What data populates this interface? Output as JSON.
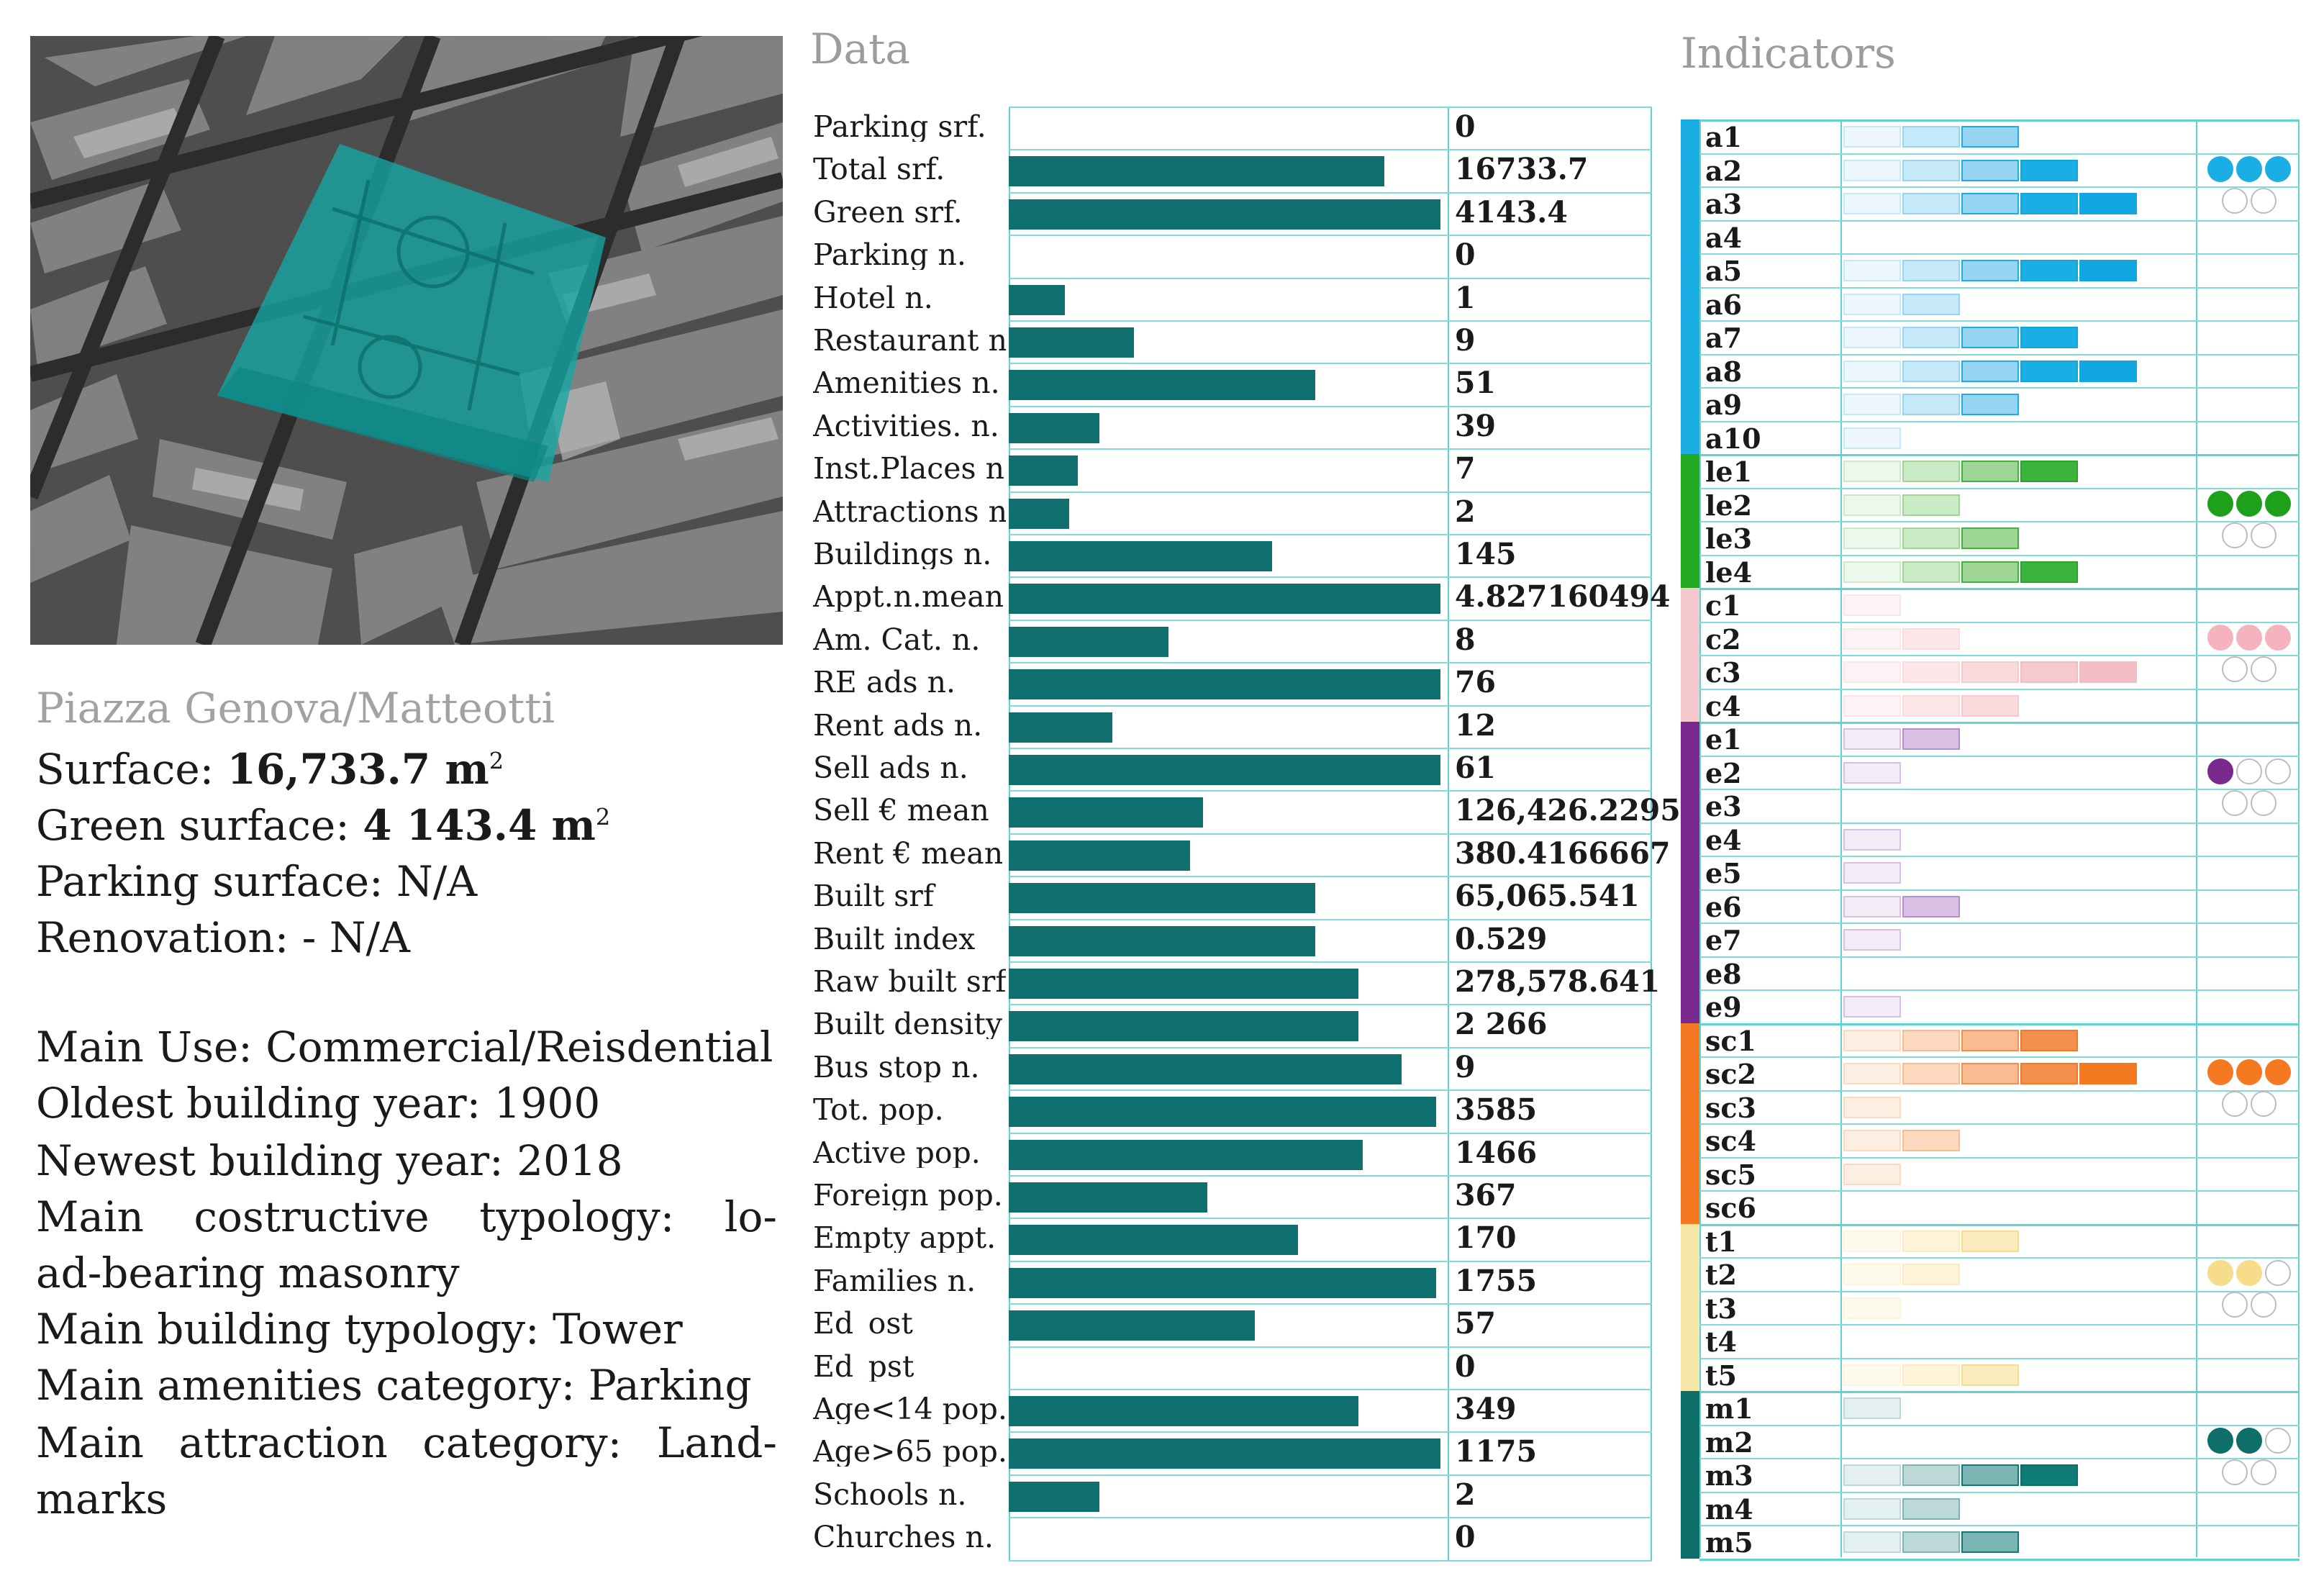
{
  "left_panel": {
    "place": "Piazza Genova/Matteotti",
    "surface_label": "Surface: ",
    "surface_value": "16,733.7 m",
    "green_label": "Green surface: ",
    "green_value": "4 143.4 m",
    "sq_mark": "2",
    "parking_line": "Parking surface: N/A",
    "renovation_line": "Renovation: - N/A",
    "main_use_line": "Main Use: Commercial/Reisdential",
    "oldest_line": "Oldest building year: 1900",
    "newest_line": "Newest building year: 2018",
    "construct_line1": "Main costructive typology: lo-",
    "construct_line2": "ad-bearing masonry",
    "building_typology_line": "Main building typology: Tower",
    "amenities_line": "Main amenities category: Parking",
    "attraction_line1": "Main attraction category: Land-",
    "attraction_line2": "marks"
  },
  "headings": {
    "data": "Data",
    "indicators": "Indicators"
  },
  "chart_data": [
    {
      "type": "bar",
      "title": "Data",
      "categories": [
        "Parking srf.",
        "Total srf.",
        "Green srf.",
        "Parking n.",
        "Hotel n.",
        "Restaurant n.",
        "Amenities n.",
        "Activities. n.",
        "Inst.Places n.",
        "Attractions n",
        "Buildings n.",
        "Appt.n.mean",
        "Am. Cat. n.",
        "RE ads n.",
        "Rent ads n.",
        "Sell ads n.",
        "Sell € mean",
        "Rent € mean",
        "Built srf",
        "Built index",
        "Raw built srf",
        "Built density",
        "Bus stop n.",
        "Tot. pop.",
        "Active pop.",
        "Foreign pop.",
        "Empty appt.",
        "Families n.",
        "Ed_ost",
        "Ed_pst",
        "Age<14 pop.",
        "Age>65 pop.",
        "Schools n.",
        "Churches n."
      ],
      "values": [
        "0",
        "16733.7",
        "4143.4",
        "0",
        "1",
        "9",
        "51",
        "39",
        "7",
        "2",
        "145",
        "4.827160494",
        "8",
        "76",
        "12",
        "61",
        "126,426.2295",
        "380.4166667",
        "65,065.541",
        "0.529",
        "278,578.641",
        "2 266",
        "9",
        "3585",
        "1466",
        "367",
        "170",
        "1755",
        "57",
        "0",
        "349",
        "1175",
        "2",
        "0"
      ],
      "bar_fraction": [
        0,
        0.87,
        1.0,
        0,
        0.13,
        0.29,
        0.71,
        0.21,
        0.16,
        0.14,
        0.61,
        1.0,
        0.37,
        1.0,
        0.24,
        1.0,
        0.45,
        0.42,
        0.71,
        0.71,
        0.81,
        0.81,
        0.91,
        0.99,
        0.82,
        0.46,
        0.67,
        0.99,
        0.57,
        0,
        0.81,
        1.0,
        0.21,
        0
      ],
      "bar_color": "#0f6e6e"
    },
    {
      "type": "table",
      "title": "Indicators",
      "groups": [
        {
          "color": "#1aaee5",
          "dot_colors": [
            "#1aaee5",
            "#1aaee5",
            "#1aaee5"
          ],
          "filled_dots": 3,
          "levels": [
            "#edf7fd",
            "#c6e9f9",
            "#96d4f2",
            "#1aaee5",
            "#12a6e0"
          ],
          "items": [
            {
              "label": "a1",
              "level": 3
            },
            {
              "label": "a2",
              "level": 4
            },
            {
              "label": "a3",
              "level": 5
            },
            {
              "label": "a4",
              "level": 0
            },
            {
              "label": "a5",
              "level": 5
            },
            {
              "label": "a6",
              "level": 2
            },
            {
              "label": "a7",
              "level": 4
            },
            {
              "label": "a8",
              "level": 5
            },
            {
              "label": "a9",
              "level": 3
            },
            {
              "label": "a10",
              "level": 1
            }
          ]
        },
        {
          "color": "#22aa22",
          "dot_colors": [
            "#1da11d",
            "#1da11d",
            "#1da11d"
          ],
          "filled_dots": 3,
          "levels": [
            "#edf8ec",
            "#cbeac6",
            "#9fd696",
            "#3bb53b",
            "#2aa52a"
          ],
          "items": [
            {
              "label": "le1",
              "level": 4
            },
            {
              "label": "le2",
              "level": 2
            },
            {
              "label": "le3",
              "level": 3
            },
            {
              "label": "le4",
              "level": 4
            }
          ]
        },
        {
          "color": "#f4c8cd",
          "dot_colors": [
            "#f5b4bd",
            "#f5b4bd",
            "#f5b4bd"
          ],
          "filled_dots": 3,
          "levels": [
            "#fdf3f4",
            "#fbe6e8",
            "#f9dadd",
            "#f6c9cf",
            "#f4bcc3"
          ],
          "items": [
            {
              "label": "c1",
              "level": 1
            },
            {
              "label": "c2",
              "level": 2
            },
            {
              "label": "c3",
              "level": 5
            },
            {
              "label": "c4",
              "level": 3
            }
          ]
        },
        {
          "color": "#7a2a8f",
          "dot_colors": [
            "#7a2a8f",
            "#ffffff",
            "#ffffff"
          ],
          "filled_dots": 1,
          "levels": [
            "#f3ecf6",
            "#d8bfe3",
            "#b690c8",
            "#8a4aa0",
            "#7a2a8f"
          ],
          "items": [
            {
              "label": "e1",
              "level": 2
            },
            {
              "label": "e2",
              "level": 1
            },
            {
              "label": "e3",
              "level": 0
            },
            {
              "label": "e4",
              "level": 1
            },
            {
              "label": "e5",
              "level": 1
            },
            {
              "label": "e6",
              "level": 2
            },
            {
              "label": "e7",
              "level": 1
            },
            {
              "label": "e8",
              "level": 0
            },
            {
              "label": "e9",
              "level": 1
            }
          ]
        },
        {
          "color": "#f47920",
          "dot_colors": [
            "#f47920",
            "#f47920",
            "#f47920"
          ],
          "filled_dots": 3,
          "levels": [
            "#fdeee2",
            "#fcd9bf",
            "#f9bb91",
            "#f58f4d",
            "#f47920"
          ],
          "items": [
            {
              "label": "sc1",
              "level": 4
            },
            {
              "label": "sc2",
              "level": 5
            },
            {
              "label": "sc3",
              "level": 1
            },
            {
              "label": "sc4",
              "level": 2
            },
            {
              "label": "sc5",
              "level": 1
            },
            {
              "label": "sc6",
              "level": 0
            }
          ]
        },
        {
          "color": "#f6e6a8",
          "dot_colors": [
            "#f7dc8c",
            "#f7dc8c",
            "#ffffff"
          ],
          "filled_dots": 2,
          "levels": [
            "#fefbee",
            "#fdf4d9",
            "#fbecc0",
            "#f7dc8c",
            "#f5d47a"
          ],
          "items": [
            {
              "label": "t1",
              "level": 3
            },
            {
              "label": "t2",
              "level": 2
            },
            {
              "label": "t3",
              "level": 1
            },
            {
              "label": "t4",
              "level": 0
            },
            {
              "label": "t5",
              "level": 3
            }
          ]
        },
        {
          "color": "#0d6e6a",
          "dot_colors": [
            "#0d6e6a",
            "#0d6e6a",
            "#ffffff"
          ],
          "filled_dots": 2,
          "levels": [
            "#e4f0f0",
            "#bcd9d8",
            "#7bb5b3",
            "#0f7b77",
            "#0d6e6a"
          ],
          "items": [
            {
              "label": "m1",
              "level": 1
            },
            {
              "label": "m2",
              "level": 0
            },
            {
              "label": "m3",
              "level": 4
            },
            {
              "label": "m4",
              "level": 2
            },
            {
              "label": "m5",
              "level": 3
            }
          ]
        }
      ]
    }
  ]
}
